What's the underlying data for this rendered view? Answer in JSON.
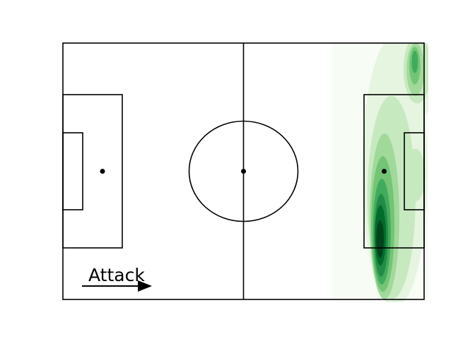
{
  "chart_data": {
    "type": "heatmap",
    "kind": "kde-density-on-football-pitch",
    "colormap": [
      "#f7fcf5",
      "#e5f5e0",
      "#c7e9c0",
      "#a1d99b",
      "#74c476",
      "#41ab5d",
      "#238b45",
      "#006d2c",
      "#00441b"
    ],
    "pitch": {
      "length": 105,
      "width": 68,
      "x_range": [
        0,
        105
      ],
      "y_range": [
        0,
        68
      ],
      "line_color": "#000000",
      "background": "#ffffff"
    },
    "density_regions": [
      {
        "level": 1,
        "cx": 96.5,
        "cy": 34,
        "rx": 9.5,
        "ry": 36
      },
      {
        "level": 2,
        "cx": 95.5,
        "cy": 27,
        "rx": 7,
        "ry": 27
      },
      {
        "level": 3,
        "cx": 93.5,
        "cy": 22,
        "rx": 4.3,
        "ry": 22
      },
      {
        "level": 4,
        "cx": 93,
        "cy": 20,
        "rx": 3.4,
        "ry": 18
      },
      {
        "level": 5,
        "cx": 92.7,
        "cy": 18,
        "rx": 2.6,
        "ry": 14
      },
      {
        "level": 6,
        "cx": 92.5,
        "cy": 17,
        "rx": 2.0,
        "ry": 11
      },
      {
        "level": 7,
        "cx": 92.3,
        "cy": 17,
        "rx": 1.6,
        "ry": 8
      },
      {
        "level": 8,
        "cx": 92.2,
        "cy": 16,
        "rx": 1.1,
        "ry": 5
      },
      {
        "level": 1,
        "cx": 103,
        "cy": 60,
        "rx": 6,
        "ry": 12
      },
      {
        "level": 2,
        "cx": 103,
        "cy": 61,
        "rx": 4,
        "ry": 9
      },
      {
        "level": 3,
        "cx": 102.5,
        "cy": 61,
        "rx": 2.6,
        "ry": 7
      },
      {
        "level": 4,
        "cx": 102.3,
        "cy": 62,
        "rx": 1.6,
        "ry": 5
      },
      {
        "level": 5,
        "cx": 102.3,
        "cy": 63,
        "rx": 0.9,
        "ry": 3
      },
      {
        "level": 2,
        "cx": 102.5,
        "cy": 33,
        "rx": 2.8,
        "ry": 7
      }
    ],
    "annotations": {
      "attack_label": "Attack",
      "attack_direction": "right"
    },
    "grid": false,
    "legend": "none"
  }
}
